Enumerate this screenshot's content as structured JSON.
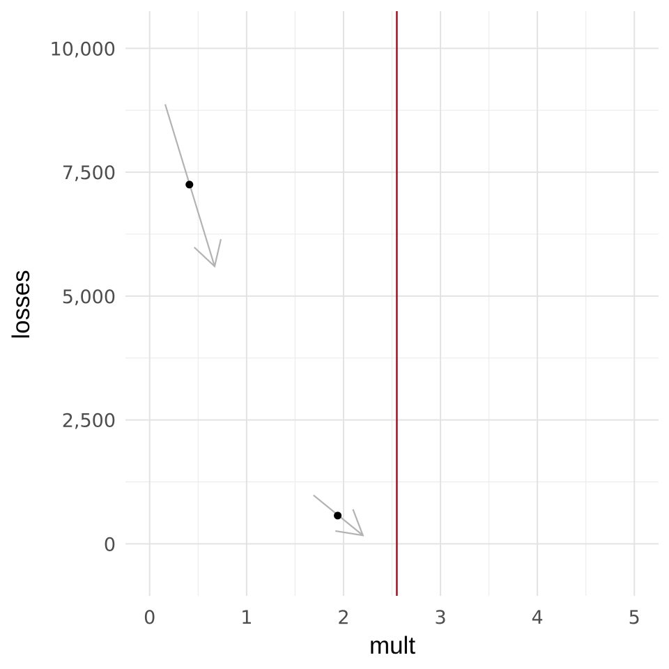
{
  "chart_data": {
    "type": "scatter",
    "xlabel": "mult",
    "ylabel": "losses",
    "xlim": [
      -0.25,
      5.25
    ],
    "ylim": [
      -1050,
      10750
    ],
    "x_ticks": [
      0,
      1,
      2,
      3,
      4,
      5
    ],
    "x_tick_labels": [
      "0",
      "1",
      "2",
      "3",
      "4",
      "5"
    ],
    "y_ticks": [
      0,
      2500,
      5000,
      7500,
      10000
    ],
    "y_tick_labels": [
      "0",
      "2,500",
      "5,000",
      "7,500",
      "10,000"
    ],
    "grid": true,
    "points": [
      {
        "x": 0.41,
        "y": 7250
      },
      {
        "x": 1.94,
        "y": 570
      }
    ],
    "arrows": [
      {
        "x_start": 0.16,
        "y_start": 8870,
        "x_end": 0.67,
        "y_end": 5600
      },
      {
        "x_start": 1.69,
        "y_start": 980,
        "x_end": 2.2,
        "y_end": 170
      }
    ],
    "vline": {
      "x": 2.55,
      "color": "#a01c2a"
    },
    "colors": {
      "point": "#000000",
      "arrow": "#b3b3b3",
      "grid": "#e3e3e3"
    }
  }
}
